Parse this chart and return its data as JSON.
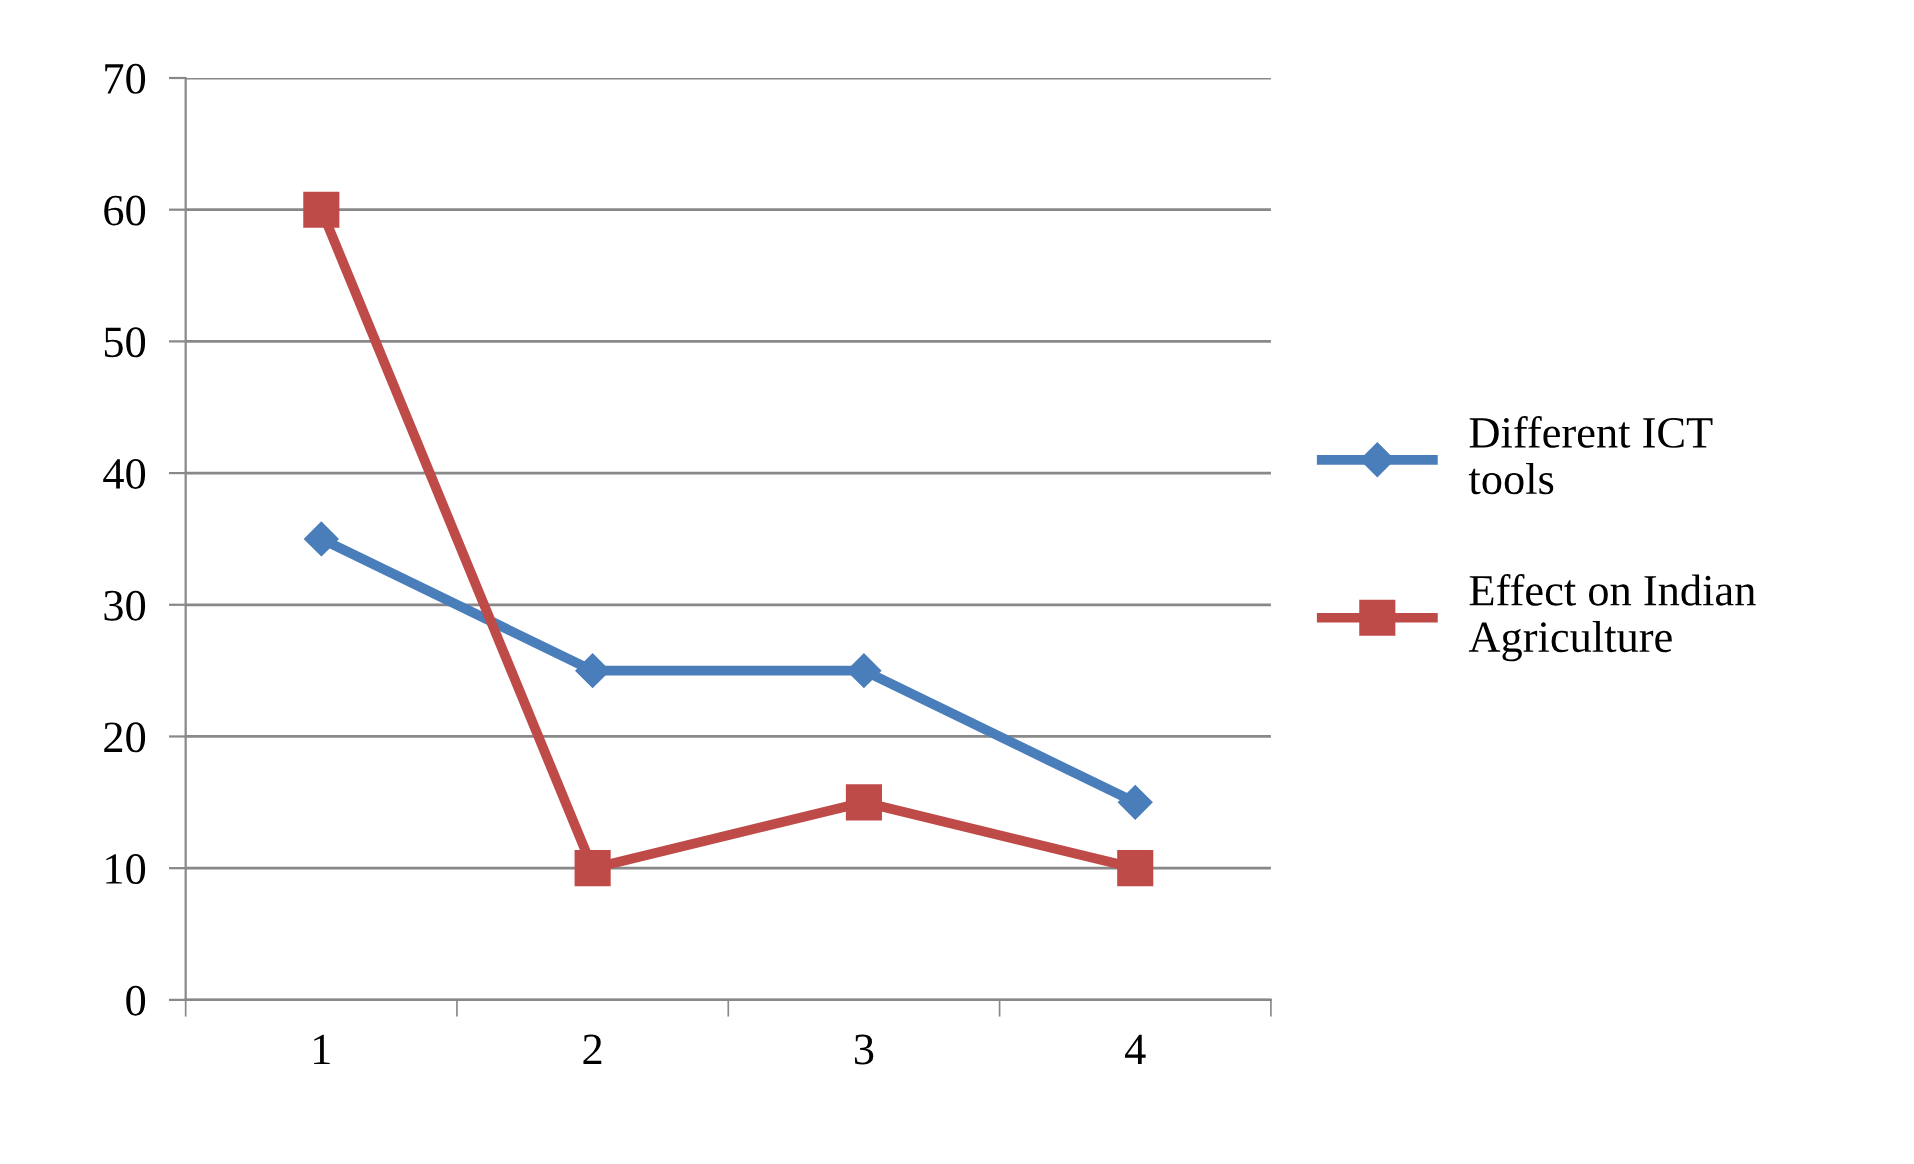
{
  "chart_data": {
    "type": "line",
    "categories": [
      "1",
      "2",
      "3",
      "4"
    ],
    "series": [
      {
        "name": "Different ICT tools",
        "color": "#4a7ebb",
        "marker": "diamond",
        "values": [
          35,
          25,
          25,
          15
        ]
      },
      {
        "name": "Effect on Indian Agriculture",
        "color": "#be4b48",
        "marker": "square",
        "values": [
          60,
          10,
          15,
          10
        ]
      }
    ],
    "ylim": [
      0,
      70
    ],
    "yticks": [
      0,
      10,
      20,
      30,
      40,
      50,
      60,
      70
    ],
    "grid": "y",
    "legend": "right",
    "line_style": "solid"
  }
}
